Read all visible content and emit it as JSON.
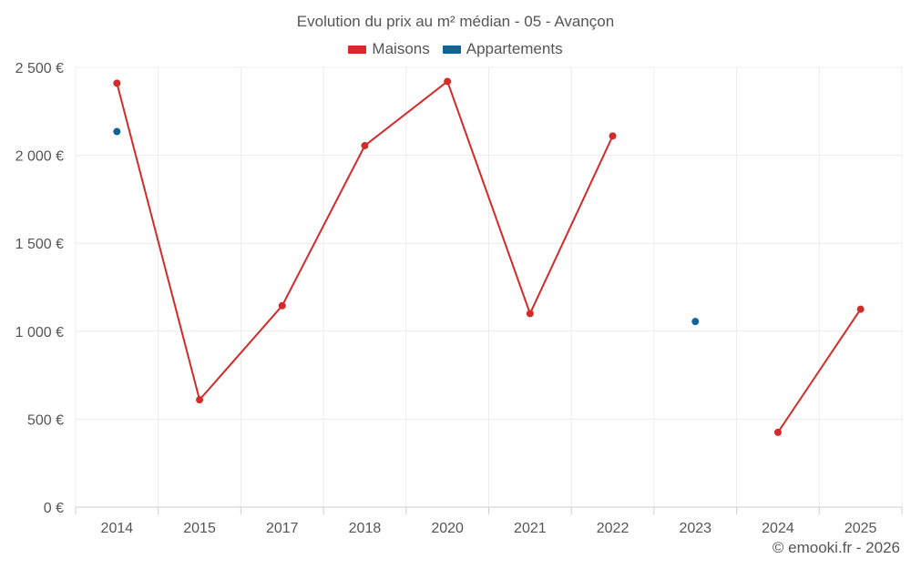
{
  "chart_data": {
    "type": "line",
    "title": "Evolution du prix au m² médian - 05 - Avançon",
    "categories": [
      "2014",
      "2015",
      "2017",
      "2018",
      "2020",
      "2021",
      "2022",
      "2023",
      "2024",
      "2025"
    ],
    "y_ticks": [
      "0 €",
      "500 €",
      "1 000 €",
      "1 500 €",
      "2 000 €",
      "2 500 €"
    ],
    "ylim": [
      0,
      2500
    ],
    "grid": true,
    "legend_position": "top-center",
    "series": [
      {
        "name": "Maisons",
        "color": "#d32a2a",
        "values": [
          2410,
          610,
          1145,
          2055,
          2420,
          1100,
          2110,
          null,
          425,
          1125
        ]
      },
      {
        "name": "Appartements",
        "color": "#0d6498",
        "values": [
          2135,
          null,
          null,
          null,
          null,
          null,
          null,
          1055,
          null,
          null
        ]
      }
    ]
  },
  "credit": "© emooki.fr - 2026"
}
